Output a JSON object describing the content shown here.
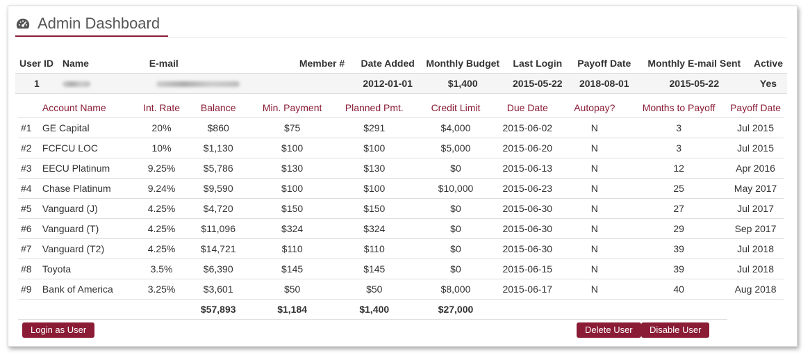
{
  "page": {
    "title": "Admin Dashboard",
    "icon": "dashboard-gauge-icon"
  },
  "user_headers": [
    "User ID",
    "Name",
    "E-mail",
    "Member #",
    "Date Added",
    "Monthly Budget",
    "Last Login",
    "Payoff Date",
    "Monthly E-mail Sent",
    "Active"
  ],
  "user": {
    "id": "1",
    "date_added": "2012-01-01",
    "monthly_budget": "$1,400",
    "last_login": "2015-05-22",
    "payoff_date": "2018-08-01",
    "monthly_email_sent": "2015-05-22",
    "active": "Yes"
  },
  "account_headers": [
    "Account Name",
    "Int. Rate",
    "Balance",
    "Min. Payment",
    "Planned Pmt.",
    "Credit Limit",
    "Due Date",
    "Autopay?",
    "Months to Payoff",
    "Payoff Date"
  ],
  "accounts": [
    {
      "num": "#1",
      "name": "GE Capital",
      "rate": "20%",
      "balance": "$860",
      "min": "$75",
      "planned": "$291",
      "limit": "$4,000",
      "due": "2015-06-02",
      "autopay": "N",
      "months": "3",
      "payoff": "Jul 2015"
    },
    {
      "num": "#2",
      "name": "FCFCU LOC",
      "rate": "10%",
      "balance": "$1,130",
      "min": "$100",
      "planned": "$100",
      "limit": "$5,000",
      "due": "2015-06-20",
      "autopay": "N",
      "months": "3",
      "payoff": "Jul 2015"
    },
    {
      "num": "#3",
      "name": "EECU Platinum",
      "rate": "9.25%",
      "balance": "$5,786",
      "min": "$130",
      "planned": "$130",
      "limit": "$0",
      "due": "2015-06-13",
      "autopay": "N",
      "months": "12",
      "payoff": "Apr 2016"
    },
    {
      "num": "#4",
      "name": "Chase Platinum",
      "rate": "9.24%",
      "balance": "$9,590",
      "min": "$100",
      "planned": "$100",
      "limit": "$10,000",
      "due": "2015-06-23",
      "autopay": "N",
      "months": "25",
      "payoff": "May 2017"
    },
    {
      "num": "#5",
      "name": "Vanguard (J)",
      "rate": "4.25%",
      "balance": "$4,720",
      "min": "$150",
      "planned": "$150",
      "limit": "$0",
      "due": "2015-06-30",
      "autopay": "N",
      "months": "27",
      "payoff": "Jul 2017"
    },
    {
      "num": "#6",
      "name": "Vanguard (T)",
      "rate": "4.25%",
      "balance": "$11,096",
      "min": "$324",
      "planned": "$324",
      "limit": "$0",
      "due": "2015-06-30",
      "autopay": "N",
      "months": "29",
      "payoff": "Sep 2017"
    },
    {
      "num": "#7",
      "name": "Vanguard (T2)",
      "rate": "4.25%",
      "balance": "$14,721",
      "min": "$110",
      "planned": "$110",
      "limit": "$0",
      "due": "2015-06-30",
      "autopay": "N",
      "months": "39",
      "payoff": "Jul 2018"
    },
    {
      "num": "#8",
      "name": "Toyota",
      "rate": "3.5%",
      "balance": "$6,390",
      "min": "$145",
      "planned": "$145",
      "limit": "$0",
      "due": "2015-06-15",
      "autopay": "N",
      "months": "39",
      "payoff": "Jul 2018"
    },
    {
      "num": "#9",
      "name": "Bank of America",
      "rate": "3.25%",
      "balance": "$3,601",
      "min": "$50",
      "planned": "$50",
      "limit": "$8,000",
      "due": "2015-06-17",
      "autopay": "N",
      "months": "40",
      "payoff": "Aug 2018"
    }
  ],
  "totals": {
    "balance": "$57,893",
    "min": "$1,184",
    "planned": "$1,400",
    "limit": "$27,000"
  },
  "buttons": {
    "login_as_user": "Login as User",
    "delete_user": "Delete User",
    "disable_user": "Disable User"
  },
  "colors": {
    "accent": "#8a1c36"
  }
}
